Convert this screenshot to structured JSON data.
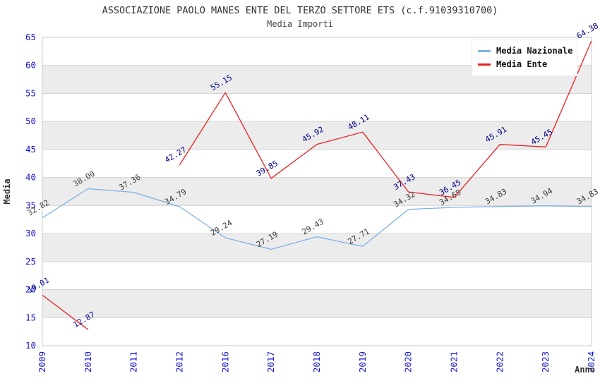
{
  "header": {
    "title": "ASSOCIAZIONE PAOLO MANES ENTE DEL TERZO SETTORE ETS (c.f.91039310700)",
    "subtitle": "Media Importi"
  },
  "chart_data": {
    "type": "line",
    "title": "ASSOCIAZIONE PAOLO MANES ENTE DEL TERZO SETTORE ETS (c.f.91039310700)",
    "subtitle": "Media Importi",
    "xlabel": "Anno",
    "ylabel": "Media",
    "categories": [
      "2009",
      "2010",
      "2011",
      "2012",
      "2016",
      "2017",
      "2018",
      "2019",
      "2020",
      "2021",
      "2022",
      "2023",
      "2024"
    ],
    "series": [
      {
        "name": "Media Nazionale",
        "color": "#7db2e8",
        "label_color": "#3c3c3c",
        "values": [
          32.82,
          38.0,
          37.36,
          34.79,
          29.24,
          27.19,
          29.43,
          27.71,
          34.32,
          34.68,
          34.83,
          34.94,
          34.83
        ]
      },
      {
        "name": "Media Ente",
        "color": "#e62222",
        "label_color": "#00008b",
        "values": [
          19.01,
          12.87,
          null,
          42.27,
          55.15,
          39.85,
          45.92,
          48.11,
          37.43,
          36.45,
          45.91,
          45.45,
          64.38
        ]
      }
    ],
    "ylim": [
      10,
      65
    ],
    "yticks": [
      10,
      15,
      20,
      25,
      30,
      35,
      40,
      45,
      50,
      55,
      60,
      65
    ],
    "grid": true,
    "legend_position": "top-right",
    "colors": {
      "tick_label": "#1515d0",
      "axis_title": "#333333",
      "band_light": "#ffffff",
      "band_dark": "#ececec",
      "gridline": "#d4d4d4",
      "plot_border": "#c9c9c9"
    }
  }
}
